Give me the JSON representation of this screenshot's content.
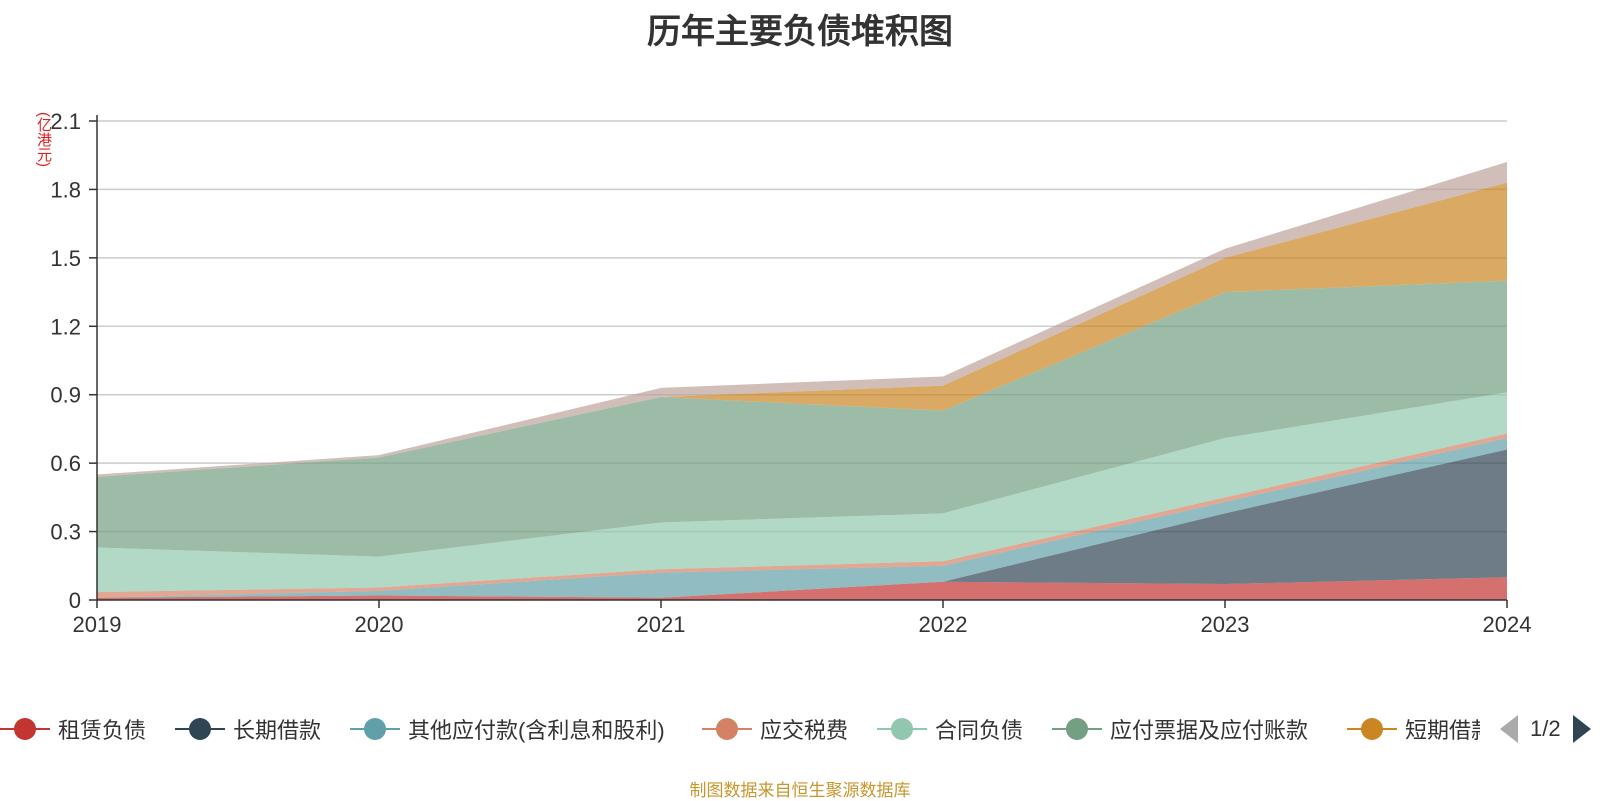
{
  "chart_data": {
    "type": "area",
    "stacked": true,
    "title": "历年主要负债堆积图",
    "ylabel": "(亿港元)",
    "x": [
      "2019",
      "2020",
      "2021",
      "2022",
      "2023",
      "2024"
    ],
    "ylim": [
      0,
      2.1
    ],
    "yticks": [
      "0",
      "0.3",
      "0.6",
      "0.9",
      "1.2",
      "1.5",
      "1.8",
      "2.1"
    ],
    "grid": true,
    "legend_position": "bottom",
    "series": [
      {
        "name": "租赁负债",
        "color": "#c23531",
        "values": [
          0.01,
          0.02,
          0.01,
          0.08,
          0.07,
          0.1
        ]
      },
      {
        "name": "长期借款",
        "color": "#2f4554",
        "values": [
          0.0,
          0.0,
          0.0,
          0.0,
          0.31,
          0.56
        ]
      },
      {
        "name": "其他应付款(含利息和股利)",
        "color": "#61a0a8",
        "values": [
          0.0,
          0.02,
          0.11,
          0.07,
          0.05,
          0.05
        ]
      },
      {
        "name": "应交税费",
        "color": "#d48265",
        "values": [
          0.025,
          0.015,
          0.015,
          0.02,
          0.02,
          0.02
        ]
      },
      {
        "name": "合同负债",
        "color": "#91c7ae",
        "values": [
          0.195,
          0.135,
          0.205,
          0.21,
          0.26,
          0.18
        ]
      },
      {
        "name": "应付票据及应付账款",
        "color": "#749f83",
        "values": [
          0.31,
          0.435,
          0.55,
          0.45,
          0.64,
          0.49
        ]
      },
      {
        "name": "短期借款",
        "color": "#ca8622",
        "values": [
          0.0,
          0.0,
          0.0,
          0.11,
          0.15,
          0.43
        ]
      },
      {
        "name": "",
        "color": "#bda29a",
        "values": [
          0.01,
          0.01,
          0.04,
          0.04,
          0.04,
          0.09
        ]
      }
    ]
  },
  "legend": {
    "items": [
      {
        "label": "租赁负债",
        "color": "#c23531"
      },
      {
        "label": "长期借款",
        "color": "#2f4554"
      },
      {
        "label": "其他应付款(含利息和股利)",
        "color": "#61a0a8"
      },
      {
        "label": "应交税费",
        "color": "#d48265"
      },
      {
        "label": "合同负债",
        "color": "#91c7ae"
      },
      {
        "label": "应付票据及应付账款",
        "color": "#749f83"
      },
      {
        "label": "短期借款",
        "color": "#ca8622"
      }
    ],
    "page": "1/2"
  },
  "source_note": "制图数据来自恒生聚源数据库"
}
